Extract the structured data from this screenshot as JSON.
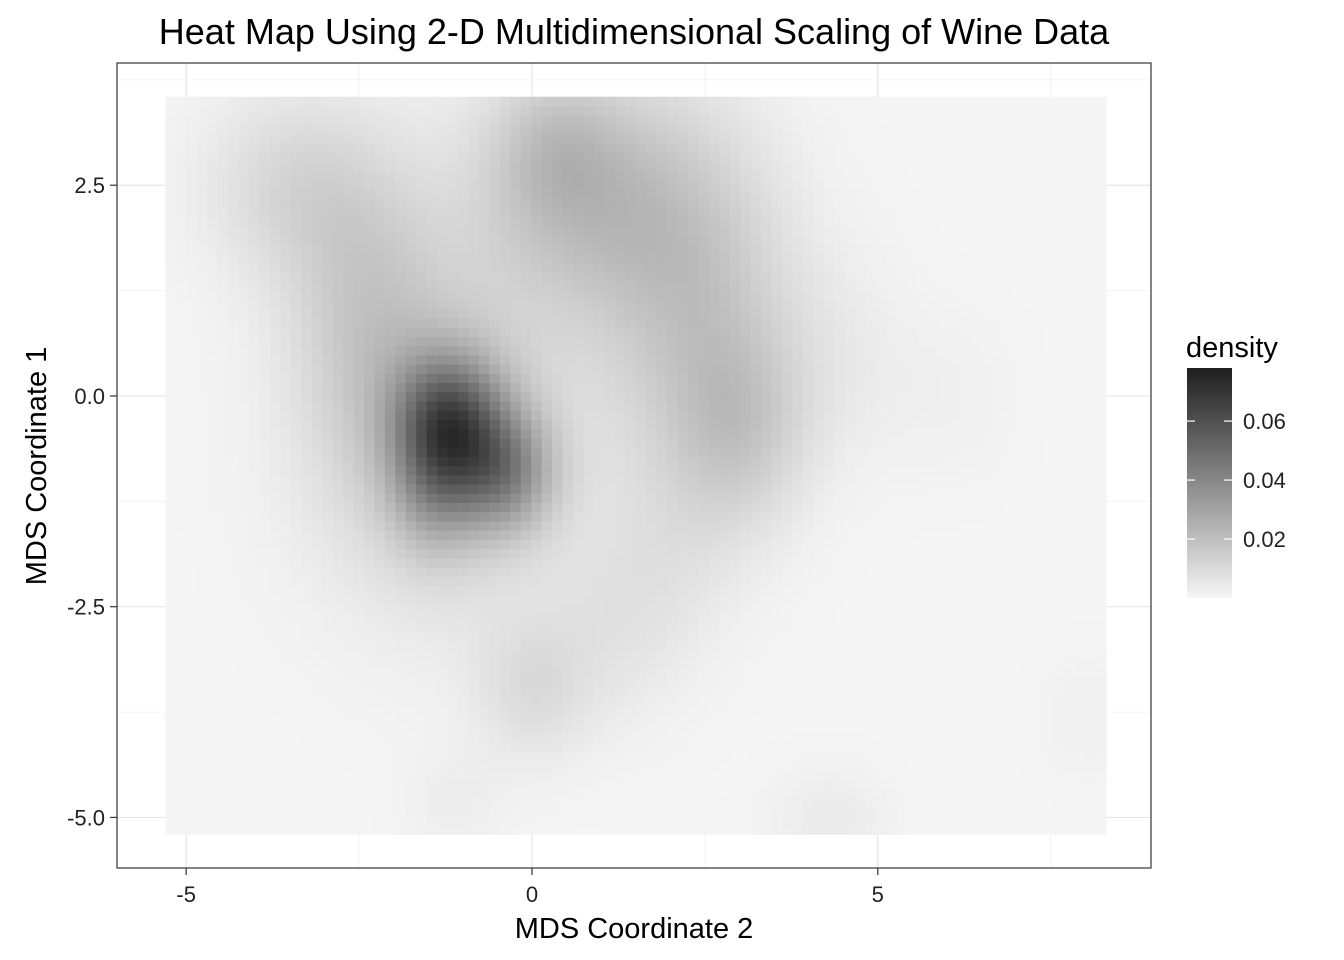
{
  "chart_data": {
    "type": "heatmap",
    "title": "Heat Map Using 2-D Multidimensional Scaling of Wine Data",
    "xlabel": "MDS Coordinate 2",
    "ylabel": "MDS Coordinate 1",
    "xlim": [
      -6.0,
      8.95
    ],
    "ylim": [
      -5.6,
      3.95
    ],
    "x_data_range": [
      -5.3,
      8.3
    ],
    "y_data_range": [
      -5.2,
      3.55
    ],
    "x_ticks": [
      -5,
      0,
      5
    ],
    "x_tick_labels": [
      "-5",
      "0",
      "5"
    ],
    "y_ticks": [
      2.5,
      0.0,
      -2.5,
      -5.0
    ],
    "y_tick_labels": [
      "2.5",
      "0.0",
      "-2.5",
      "-5.0"
    ],
    "grid": true,
    "colormap": {
      "low": "#f5f5f5",
      "high": "#1e1e1e"
    },
    "legend": {
      "title": "density",
      "position": "right",
      "range": [
        0.0,
        0.078
      ],
      "ticks": [
        0.02,
        0.04,
        0.06
      ],
      "tick_labels": [
        "0.02",
        "0.04",
        "0.06"
      ]
    },
    "density_components": [
      {
        "x": -1.2,
        "y": -0.3,
        "sx": 0.55,
        "sy": 0.55,
        "peak": 0.045
      },
      {
        "x": -0.4,
        "y": -0.9,
        "sx": 0.5,
        "sy": 0.5,
        "peak": 0.03
      },
      {
        "x": -1.4,
        "y": -1.1,
        "sx": 0.45,
        "sy": 0.55,
        "peak": 0.018
      },
      {
        "x": -1.3,
        "y": -0.5,
        "sx": 1.3,
        "sy": 1.4,
        "peak": 0.016
      },
      {
        "x": 0.8,
        "y": 2.4,
        "sx": 1.2,
        "sy": 1.0,
        "peak": 0.019
      },
      {
        "x": 0.3,
        "y": 3.0,
        "sx": 0.6,
        "sy": 0.6,
        "peak": 0.008
      },
      {
        "x": 2.4,
        "y": 1.0,
        "sx": 1.0,
        "sy": 1.4,
        "peak": 0.016
      },
      {
        "x": 3.0,
        "y": -0.4,
        "sx": 0.7,
        "sy": 0.8,
        "peak": 0.012
      },
      {
        "x": -3.5,
        "y": 2.5,
        "sx": 0.9,
        "sy": 0.8,
        "peak": 0.01
      },
      {
        "x": -2.4,
        "y": 1.2,
        "sx": 0.8,
        "sy": 1.2,
        "peak": 0.012
      },
      {
        "x": 0.0,
        "y": -3.5,
        "sx": 0.6,
        "sy": 0.6,
        "peak": 0.008
      },
      {
        "x": 1.2,
        "y": -2.8,
        "sx": 0.8,
        "sy": 0.8,
        "peak": 0.005
      },
      {
        "x": -1.1,
        "y": -4.8,
        "sx": 0.5,
        "sy": 0.4,
        "peak": 0.003
      },
      {
        "x": 4.3,
        "y": -5.0,
        "sx": 0.6,
        "sy": 0.4,
        "peak": 0.004
      },
      {
        "x": 4.5,
        "y": 0.5,
        "sx": 0.7,
        "sy": 0.9,
        "peak": 0.003
      },
      {
        "x": 6.0,
        "y": 0.0,
        "sx": 0.7,
        "sy": 0.7,
        "peak": 0.002
      },
      {
        "x": 2.0,
        "y": -1.8,
        "sx": 0.8,
        "sy": 0.8,
        "peak": 0.004
      },
      {
        "x": 8.0,
        "y": -3.8,
        "sx": 0.5,
        "sy": 0.5,
        "peak": 0.002
      }
    ]
  }
}
